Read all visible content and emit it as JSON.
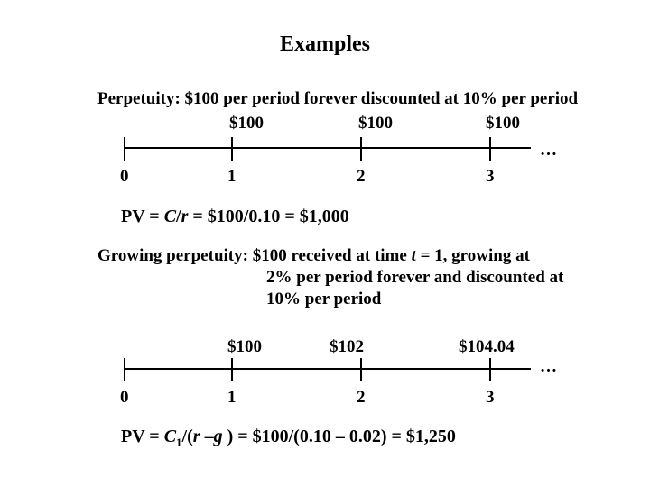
{
  "title": "Examples",
  "perpetuity": {
    "heading": "Perpetuity:   $100 per period forever discounted at 10% per period",
    "cash_flows": [
      "$100",
      "$100",
      "$100"
    ],
    "ellipsis": "…",
    "periods": [
      "0",
      "1",
      "2",
      "3"
    ],
    "formula": {
      "part1": "PV = ",
      "c": "C",
      "slash": "/",
      "r": "r",
      "rest": " = $100/0.10 = $1,000"
    }
  },
  "growing": {
    "heading_line1": "Growing perpetuity:   $100 received at time ",
    "heading_t": "t",
    "heading_line1_end": " = 1, growing at",
    "heading_line2": "2% per period forever and discounted at",
    "heading_line3": "10% per period",
    "cash_flows": [
      "$100",
      "$102",
      "$104.04"
    ],
    "ellipsis": "…",
    "periods": [
      "0",
      "1",
      "2",
      "3"
    ],
    "formula": {
      "part1": "PV = ",
      "c": "C",
      "sub": "1",
      "open": "/(",
      "r": "r",
      "minus": " –",
      "g": "g",
      "rest": " ) = $100/(0.10 – 0.02) = $1,250"
    }
  }
}
